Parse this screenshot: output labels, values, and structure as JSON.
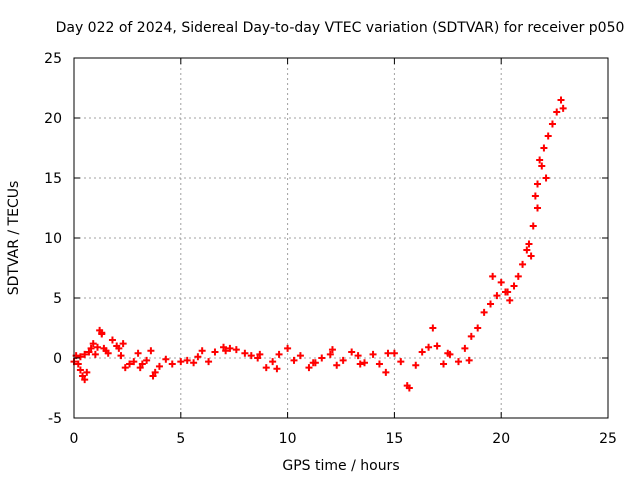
{
  "chart_data": {
    "type": "scatter",
    "title": "Day 022 of 2024, Sidereal Day-to-day VTEC variation (SDTVAR) for receiver p050",
    "xlabel": "GPS time / hours",
    "ylabel": "SDTVAR / TECUs",
    "xlim": [
      0,
      25
    ],
    "ylim": [
      -5,
      25
    ],
    "xticks": [
      0,
      5,
      10,
      15,
      20,
      25
    ],
    "yticks": [
      -5,
      0,
      5,
      10,
      15,
      20,
      25
    ],
    "grid": true,
    "marker": "+",
    "color": "#ff0000",
    "series": [
      {
        "name": "SDTVAR",
        "x": [
          0.0,
          0.1,
          0.2,
          0.3,
          0.4,
          0.5,
          0.6,
          0.7,
          0.8,
          0.9,
          1.0,
          1.1,
          1.2,
          1.3,
          1.4,
          1.6,
          1.8,
          2.0,
          2.2,
          2.4,
          2.6,
          2.8,
          3.0,
          3.2,
          3.4,
          3.6,
          3.8,
          4.0,
          4.3,
          4.6,
          5.0,
          5.3,
          5.6,
          6.0,
          6.3,
          6.6,
          7.0,
          7.3,
          7.6,
          8.0,
          8.3,
          8.6,
          9.0,
          9.3,
          9.6,
          10.0,
          10.3,
          10.6,
          11.0,
          11.3,
          11.6,
          12.0,
          12.3,
          12.6,
          13.0,
          13.3,
          13.6,
          14.0,
          14.3,
          14.6,
          15.0,
          15.3,
          15.6,
          16.0,
          16.3,
          16.6,
          17.0,
          17.3,
          17.6,
          18.0,
          18.3,
          18.6,
          18.9,
          19.2,
          19.5,
          19.8,
          20.0,
          20.2,
          20.4,
          20.6,
          20.8,
          21.0,
          21.2,
          21.4,
          21.5,
          21.6,
          21.7,
          21.8,
          21.9,
          22.0,
          22.2,
          22.4,
          22.6,
          22.8,
          22.9,
          0.3,
          0.5,
          1.3,
          1.5,
          2.1,
          2.3,
          3.1,
          3.7,
          5.8,
          7.1,
          8.7,
          9.5,
          11.2,
          12.1,
          13.4,
          14.7,
          15.7,
          16.8,
          17.5,
          18.5,
          19.6,
          20.3,
          21.3,
          21.7,
          22.1
        ],
        "y": [
          -0.3,
          0.2,
          -0.5,
          0.1,
          -1.5,
          -1.8,
          -1.2,
          0.5,
          0.8,
          1.2,
          0.3,
          0.9,
          2.3,
          2.1,
          0.8,
          0.4,
          1.5,
          1.0,
          0.2,
          -0.8,
          -0.5,
          -0.3,
          0.4,
          -0.5,
          -0.2,
          0.6,
          -1.2,
          -0.7,
          -0.1,
          -0.5,
          -0.3,
          -0.2,
          -0.4,
          0.6,
          -0.3,
          0.5,
          0.9,
          0.8,
          0.7,
          0.4,
          0.2,
          0.0,
          -0.8,
          -0.3,
          0.3,
          0.8,
          -0.2,
          0.2,
          -0.8,
          -0.4,
          0.0,
          0.3,
          -0.6,
          -0.2,
          0.5,
          0.2,
          -0.4,
          0.3,
          -0.5,
          -1.2,
          0.4,
          -0.3,
          -2.3,
          -0.6,
          0.5,
          0.9,
          1.0,
          -0.5,
          0.3,
          -0.3,
          0.8,
          1.8,
          2.5,
          3.8,
          4.5,
          5.2,
          6.3,
          5.5,
          4.8,
          6.0,
          6.8,
          7.8,
          9.0,
          8.5,
          11.0,
          13.5,
          14.5,
          16.5,
          16.0,
          17.5,
          18.5,
          19.5,
          20.5,
          21.5,
          20.8,
          -1.0,
          0.3,
          2.0,
          0.6,
          0.8,
          1.2,
          -0.8,
          -1.5,
          0.1,
          0.6,
          0.3,
          -0.9,
          -0.4,
          0.7,
          -0.5,
          0.4,
          -2.5,
          2.5,
          0.4,
          -0.2,
          6.8,
          5.5,
          9.5,
          12.5,
          15.0
        ]
      }
    ]
  }
}
